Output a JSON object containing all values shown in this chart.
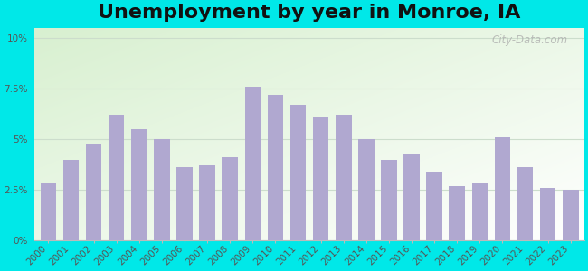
{
  "title": "Unemployment by year in Monroe, IA",
  "years": [
    2000,
    2001,
    2002,
    2003,
    2004,
    2005,
    2006,
    2007,
    2008,
    2009,
    2010,
    2011,
    2012,
    2013,
    2014,
    2015,
    2016,
    2017,
    2018,
    2019,
    2020,
    2021,
    2022,
    2023
  ],
  "values": [
    2.8,
    4.0,
    4.8,
    6.2,
    5.5,
    5.0,
    3.6,
    3.7,
    4.1,
    7.6,
    7.2,
    6.7,
    6.1,
    6.2,
    5.0,
    4.0,
    4.3,
    3.4,
    2.7,
    2.8,
    5.1,
    3.6,
    2.6,
    2.5
  ],
  "bar_color": "#b0a8d0",
  "bg_outer_color": "#00e8e8",
  "bg_inner_top_left": "#d8f0d0",
  "bg_inner_bottom_right": "#f0faf5",
  "ytick_labels": [
    "0%",
    "2.5%",
    "5%",
    "7.5%",
    "10%"
  ],
  "ytick_values": [
    0,
    2.5,
    5.0,
    7.5,
    10.0
  ],
  "ylim": [
    0,
    10.5
  ],
  "title_fontsize": 16,
  "tick_fontsize": 7.5,
  "watermark_text": "City-Data.com",
  "grid_color": "#ccddcc",
  "spine_color": "#bbbbbb"
}
